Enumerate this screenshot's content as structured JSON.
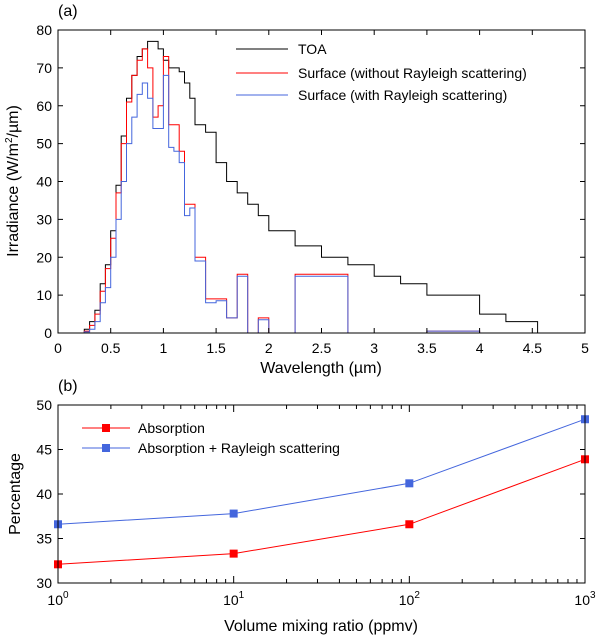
{
  "chart_data": [
    {
      "type": "line",
      "step": true,
      "panel_label": "(a)",
      "xlabel": "Wavelength (µm)",
      "ylabel": "Irradiance (W/m²/µm)",
      "ylabel_parts": {
        "pre": "Irradiance (W/m",
        "sup": "2",
        "post": "/µm)"
      },
      "xlim": [
        0,
        5
      ],
      "ylim": [
        0,
        80
      ],
      "xticks": [
        "0",
        "0.5",
        "1",
        "1.5",
        "2",
        "2.5",
        "3",
        "3.5",
        "4",
        "4.5",
        "5"
      ],
      "yticks": [
        "0",
        "10",
        "20",
        "30",
        "40",
        "50",
        "60",
        "70",
        "80"
      ],
      "xtick_values": [
        0,
        0.5,
        1,
        1.5,
        2,
        2.5,
        3,
        3.5,
        4,
        4.5,
        5
      ],
      "ytick_values": [
        0,
        10,
        20,
        30,
        40,
        50,
        60,
        70,
        80
      ],
      "legend_position": "top-right",
      "series": [
        {
          "name": "TOA",
          "color": "#000000",
          "edges": [
            0.25,
            0.3,
            0.35,
            0.4,
            0.45,
            0.5,
            0.55,
            0.6,
            0.65,
            0.7,
            0.75,
            0.8,
            0.85,
            0.9,
            0.95,
            1.0,
            1.05,
            1.1,
            1.15,
            1.2,
            1.25,
            1.3,
            1.4,
            1.5,
            1.6,
            1.7,
            1.8,
            1.9,
            2.0,
            2.25,
            2.5,
            2.75,
            3.0,
            3.25,
            3.5,
            4.0,
            4.25,
            4.55
          ],
          "values": [
            1,
            3,
            6,
            13,
            18,
            27,
            39,
            52,
            62,
            68,
            73,
            75,
            77,
            77,
            75,
            72,
            70,
            70,
            69,
            66,
            62,
            55,
            53,
            45,
            40,
            37,
            34,
            31,
            27,
            23,
            20,
            18,
            15,
            13,
            10,
            5,
            3
          ]
        },
        {
          "name": "Surface (without Rayleigh scattering)",
          "color": "#ff0000",
          "edges": [
            0.25,
            0.3,
            0.35,
            0.4,
            0.45,
            0.5,
            0.55,
            0.6,
            0.65,
            0.7,
            0.75,
            0.8,
            0.85,
            0.9,
            0.95,
            1.0,
            1.05,
            1.1,
            1.15,
            1.2,
            1.25,
            1.3,
            1.4,
            1.5,
            1.6,
            1.7,
            1.8,
            1.9,
            2.0,
            2.25,
            2.5,
            2.75,
            3.0,
            3.25,
            3.5,
            4.0,
            4.25,
            4.55
          ],
          "values": [
            0.5,
            2,
            5,
            11,
            17,
            25,
            37,
            50,
            61,
            68,
            72,
            75,
            70,
            57,
            60,
            73,
            55,
            55,
            48,
            34,
            34,
            20,
            9,
            9,
            4,
            15.5,
            0,
            4,
            0,
            15.5,
            15.5,
            0,
            0,
            0,
            0.5,
            0,
            0
          ]
        },
        {
          "name": "Surface (with Rayleigh scattering)",
          "color": "#4466dd",
          "edges": [
            0.25,
            0.3,
            0.35,
            0.4,
            0.45,
            0.5,
            0.55,
            0.6,
            0.65,
            0.7,
            0.75,
            0.8,
            0.85,
            0.9,
            0.95,
            1.0,
            1.05,
            1.1,
            1.15,
            1.2,
            1.25,
            1.3,
            1.4,
            1.5,
            1.6,
            1.7,
            1.8,
            1.9,
            2.0,
            2.25,
            2.5,
            2.75,
            3.0,
            3.25,
            3.5,
            4.0,
            4.25,
            4.55
          ],
          "values": [
            0.3,
            1,
            3,
            8,
            12,
            20,
            30,
            40,
            50,
            57,
            63,
            66,
            62,
            54,
            54,
            68,
            49,
            48,
            45,
            31,
            33,
            19,
            8,
            8.5,
            4,
            15,
            0,
            3.5,
            0,
            15,
            15,
            0,
            0,
            0,
            0.5,
            0,
            0
          ]
        }
      ]
    },
    {
      "type": "line",
      "panel_label": "(b)",
      "xlabel": "Volume mixing ratio (ppmv)",
      "ylabel": "Percentage",
      "xscale": "log",
      "xlim": [
        1,
        1000
      ],
      "ylim": [
        30,
        50
      ],
      "xticks_base": [
        "10",
        "10",
        "10",
        "10"
      ],
      "xticks_exp": [
        "0",
        "1",
        "2",
        "3"
      ],
      "xtick_values": [
        1,
        10,
        100,
        1000
      ],
      "yticks": [
        "30",
        "35",
        "40",
        "45",
        "50"
      ],
      "ytick_values": [
        30,
        35,
        40,
        45,
        50
      ],
      "legend_position": "top-left",
      "series": [
        {
          "name": "Absorption",
          "color": "#ff0000",
          "x": [
            1,
            10,
            100,
            1000
          ],
          "values": [
            32.1,
            33.3,
            36.6,
            43.9
          ]
        },
        {
          "name": "Absorption + Rayleigh scattering",
          "color": "#4466dd",
          "x": [
            1,
            10,
            100,
            1000
          ],
          "values": [
            36.6,
            37.8,
            41.2,
            48.4
          ]
        }
      ]
    }
  ]
}
